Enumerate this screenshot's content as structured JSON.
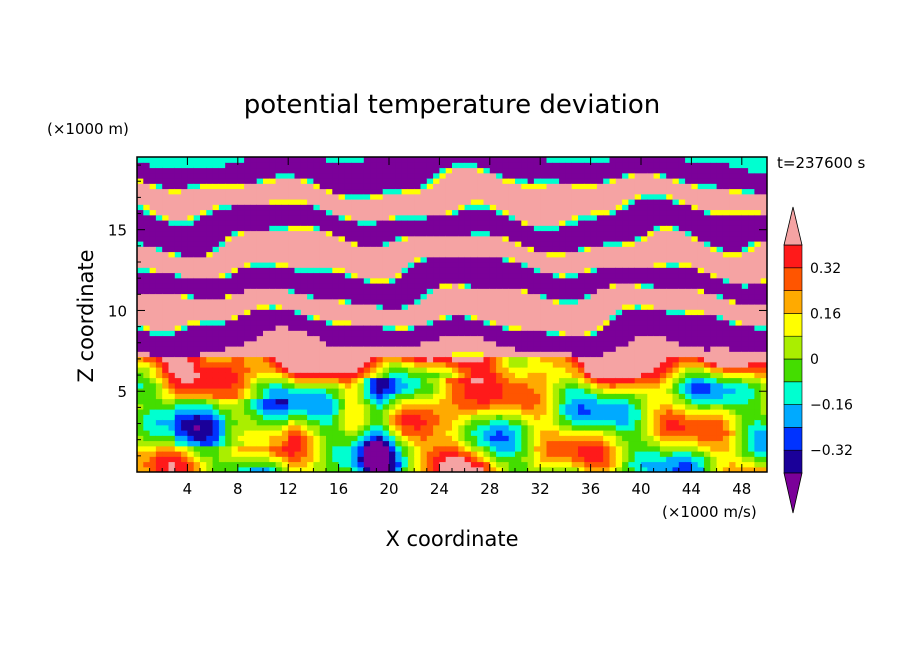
{
  "chart_data": {
    "type": "heatmap",
    "title": "potential temperature deviation",
    "xlabel": "X coordinate",
    "ylabel": "Z coordinate",
    "x_unit": "(×1000 m/s)",
    "y_unit": "(×1000 m)",
    "time_label": "t=237600 s",
    "xlim": [
      0,
      50
    ],
    "ylim": [
      0,
      19.5
    ],
    "x_ticks": [
      4,
      8,
      12,
      16,
      20,
      24,
      28,
      32,
      36,
      40,
      44,
      48
    ],
    "y_ticks": [
      5,
      10,
      15
    ],
    "colorbar": {
      "levels": [
        -0.4,
        -0.32,
        -0.24,
        -0.16,
        -0.08,
        0,
        0.08,
        0.16,
        0.24,
        0.32,
        0.4
      ],
      "colors": [
        "#7b0099",
        "#1a0099",
        "#0033ff",
        "#00aaff",
        "#00ffd0",
        "#44dd00",
        "#aaee00",
        "#ffff00",
        "#ffaa00",
        "#ff5500",
        "#ff1a1a",
        "#f5a3a3"
      ],
      "labels": [
        "0.32",
        "0.16",
        "0",
        "−0.16",
        "−0.32"
      ],
      "label_values": [
        0.32,
        0.16,
        0,
        -0.16,
        -0.32
      ]
    },
    "layers": [
      {
        "z": 18.8,
        "value": -0.45
      },
      {
        "z": 17.0,
        "value": 0.45
      },
      {
        "z": 15.2,
        "value": -0.45
      },
      {
        "z": 13.5,
        "value": 0.45
      },
      {
        "z": 11.8,
        "value": -0.45
      },
      {
        "z": 10.2,
        "value": 0.45
      },
      {
        "z": 8.5,
        "value": -0.45
      },
      {
        "z": 7.3,
        "value": 0.45
      }
    ]
  }
}
